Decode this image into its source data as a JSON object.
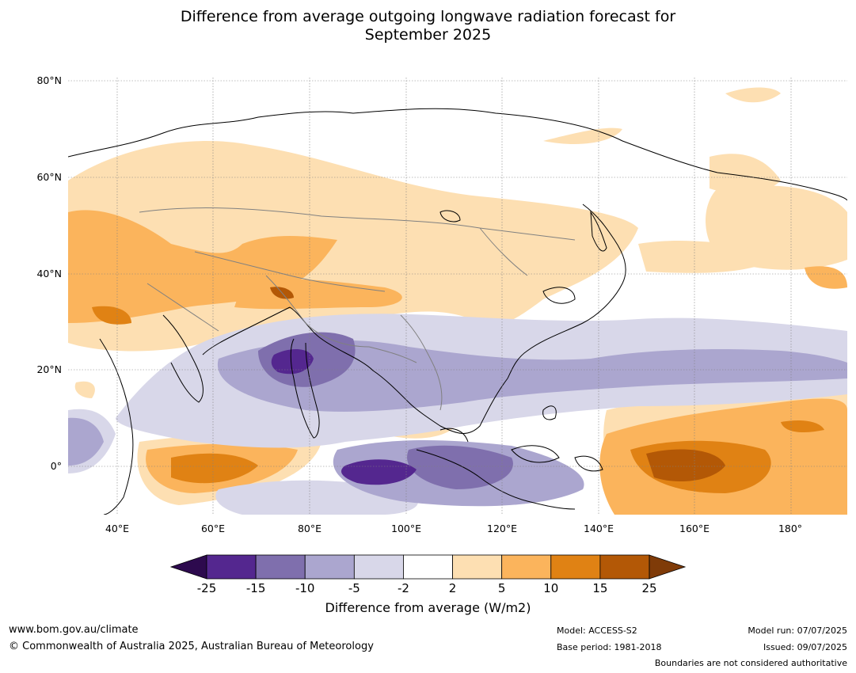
{
  "title": {
    "line1": "Difference from average outgoing longwave radiation forecast for",
    "line2": "September 2025"
  },
  "lat_labels": [
    "80°N",
    "60°N",
    "40°N",
    "20°N",
    "0°"
  ],
  "lon_labels": [
    "40°E",
    "60°E",
    "80°E",
    "100°E",
    "120°E",
    "140°E",
    "160°E",
    "180°"
  ],
  "colorbar": {
    "ticks": [
      "-25",
      "-15",
      "-10",
      "-5",
      "-2",
      "2",
      "5",
      "10",
      "15",
      "25"
    ],
    "colors": [
      "#2d0a4e",
      "#54278f",
      "#7f6fad",
      "#aba6cf",
      "#d8d7e9",
      "#ffffff",
      "#fddfb2",
      "#fbb45c",
      "#e08214",
      "#b35806",
      "#7f3b08"
    ],
    "label": "Difference from average (W/m2)"
  },
  "footer": {
    "website": "www.bom.gov.au/climate",
    "copyright": "© Commonwealth of Australia 2025, Australian Bureau of Meteorology",
    "model": "Model: ACCESS-S2",
    "base_period": "Base period: 1981-2018",
    "model_run": "Model run: 07/07/2025",
    "issued": "Issued: 09/07/2025",
    "disclaimer": "Boundaries are not considered authoritative"
  }
}
